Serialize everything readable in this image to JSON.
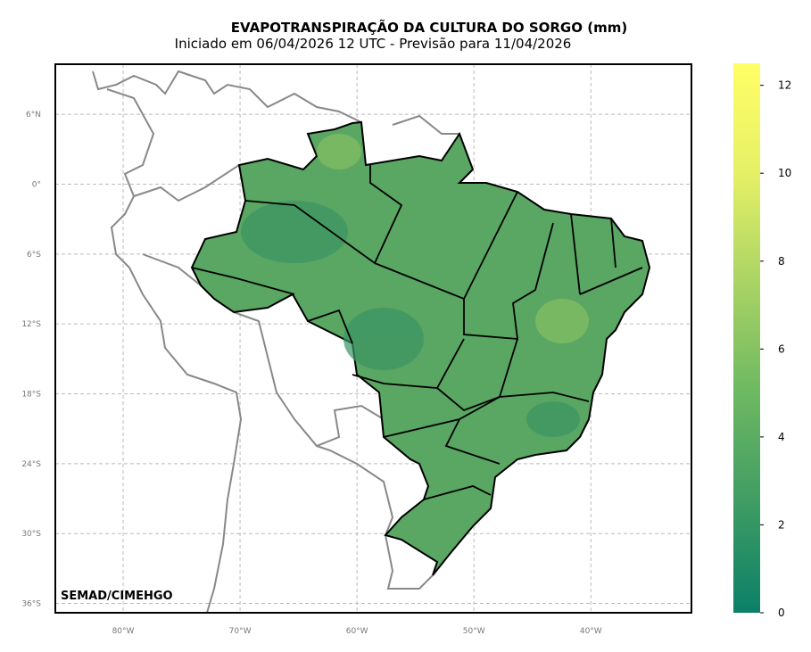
{
  "title": "EVAPOTRANSPIRAÇÃO DA CULTURA DO SORGO (mm)",
  "subtitle": "Iniciado em 06/04/2026 12 UTC - Previsão para 11/04/2026",
  "credit": "SEMAD/CIMEHGO",
  "map": {
    "xlim": [
      -85.8,
      -31.4
    ],
    "ylim": [
      -36.8,
      10.3
    ],
    "lat_ticks": [
      {
        "value": 6,
        "label": "6°N"
      },
      {
        "value": 0,
        "label": "0°"
      },
      {
        "value": -6,
        "label": "6°S"
      },
      {
        "value": -12,
        "label": "12°S"
      },
      {
        "value": -18,
        "label": "18°S"
      },
      {
        "value": -24,
        "label": "24°S"
      },
      {
        "value": -30,
        "label": "30°S"
      },
      {
        "value": -36,
        "label": "36°S"
      }
    ],
    "lon_ticks": [
      {
        "value": -80,
        "label": "80°W"
      },
      {
        "value": -70,
        "label": "70°W"
      },
      {
        "value": -60,
        "label": "60°W"
      },
      {
        "value": -50,
        "label": "50°W"
      },
      {
        "value": -40,
        "label": "40°W"
      }
    ]
  },
  "colorbar": {
    "lim": [
      0,
      12.5
    ],
    "ticks": [
      0,
      2,
      4,
      6,
      8,
      10,
      12
    ],
    "colors": [
      "#0b8068",
      "#3f9c64",
      "#6db862",
      "#a9d364",
      "#e6f066",
      "#ffff66"
    ]
  }
}
